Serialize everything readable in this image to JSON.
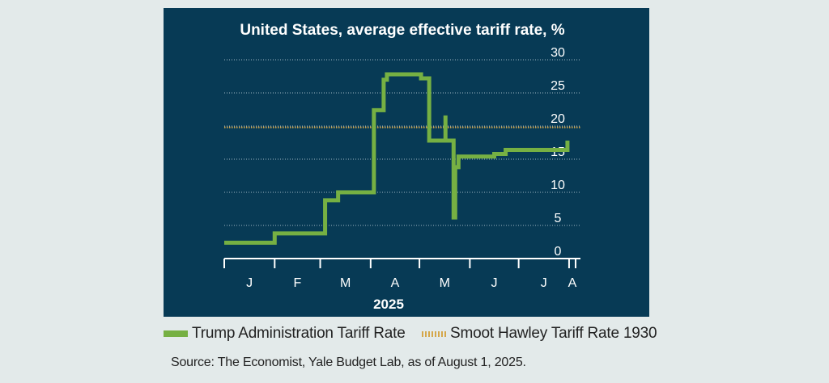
{
  "chart_data": {
    "type": "line",
    "title": "United States, average effective tariff rate, %",
    "xlabel": "2025",
    "ylabel": "",
    "month_ticks": [
      "J",
      "F",
      "M",
      "A",
      "M",
      "J",
      "J",
      "A"
    ],
    "yticks": [
      0,
      5,
      10,
      15,
      20,
      25,
      30
    ],
    "ylim": [
      0,
      30
    ],
    "xlim": [
      "2025-01-01",
      "2025-08-08"
    ],
    "grid": true,
    "legend_position": "bottom",
    "series": [
      {
        "name": "Trump Administration Tariff Rate",
        "color": "#76b043",
        "step": true,
        "points": [
          {
            "x": "2025-01-01",
            "y": 2.4
          },
          {
            "x": "2025-02-01",
            "y": 3.8
          },
          {
            "x": "2025-03-04",
            "y": 8.8
          },
          {
            "x": "2025-03-12",
            "y": 10.0
          },
          {
            "x": "2025-04-03",
            "y": 22.4
          },
          {
            "x": "2025-04-09",
            "y": 27.0
          },
          {
            "x": "2025-04-11",
            "y": 27.8
          },
          {
            "x": "2025-05-02",
            "y": 27.2
          },
          {
            "x": "2025-05-07",
            "y": 17.8
          },
          {
            "x": "2025-05-17",
            "y": 21.6
          },
          {
            "x": "2025-05-17",
            "y": 17.8
          },
          {
            "x": "2025-05-22",
            "y": 17.8
          },
          {
            "x": "2025-05-22",
            "y": 6.2
          },
          {
            "x": "2025-05-23",
            "y": 6.2
          },
          {
            "x": "2025-05-23",
            "y": 13.8
          },
          {
            "x": "2025-05-25",
            "y": 13.8
          },
          {
            "x": "2025-05-25",
            "y": 15.4
          },
          {
            "x": "2025-06-16",
            "y": 15.8
          },
          {
            "x": "2025-06-23",
            "y": 16.4
          },
          {
            "x": "2025-07-31",
            "y": 16.4
          },
          {
            "x": "2025-07-31",
            "y": 17.8
          }
        ]
      },
      {
        "name": "Smoot Hawley Tariff Rate 1930",
        "color": "#d5a74a",
        "style": "dotted",
        "value": 19.8
      }
    ]
  },
  "legend": {
    "trump_label": "Trump Administration Tariff Rate",
    "smoot_label": "Smoot Hawley Tariff Rate 1930"
  },
  "source": "Source: The Economist, Yale Budget Lab, as of August 1, 2025."
}
